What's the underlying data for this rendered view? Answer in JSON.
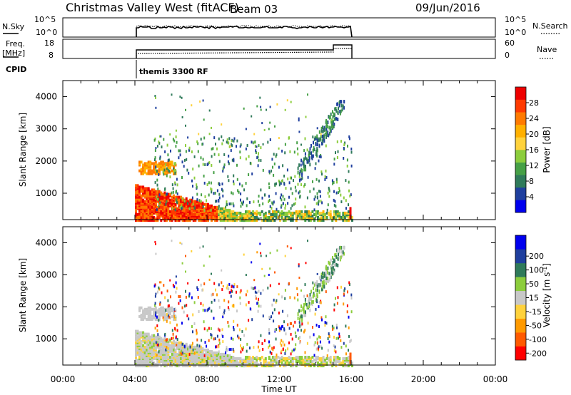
{
  "header": {
    "title": "Christmas Valley West (fitACF)",
    "beam": "Beam 03",
    "date": "09/Jun/2016"
  },
  "summary": {
    "nsky_label": "N.Sky",
    "nsky_ticks": [
      "10^5",
      "10^0"
    ],
    "nsearch_label": "N.Search",
    "freq_label_1": "Freq.",
    "freq_label_2": "[MHz]",
    "freq_ticks": [
      "18",
      "8"
    ],
    "nave_label": "Nave",
    "nave_ticks": [
      "60",
      "0"
    ],
    "cpid_label": "CPID",
    "cpid_value": "themis 3300 RF"
  },
  "colors": {
    "power_scale": [
      "#0000ee",
      "#1f3f9e",
      "#2f7a5a",
      "#46a046",
      "#8ccd3c",
      "#ffd23c",
      "#ffb000",
      "#ff7a00",
      "#ff3a00",
      "#ee0000"
    ],
    "velocity_scale": [
      "#ff0000",
      "#ff5a00",
      "#ff9a00",
      "#ffd23c",
      "#c8c8c8",
      "#8ccd3c",
      "#2f7a5a",
      "#1f3f9e",
      "#0000ee"
    ]
  },
  "chart_data": [
    {
      "type": "heatmap",
      "panel": "power",
      "xlabel": "",
      "ylabel": "Slant Range [km]",
      "x_range": [
        "00:00",
        "24:00"
      ],
      "ylim": [
        180,
        4500
      ],
      "yticks": [
        "1000",
        "2000",
        "3000",
        "4000"
      ],
      "colorbar_label": "Power [dB]",
      "colorbar_ticks": [
        "4",
        "8",
        "12",
        "16",
        "20",
        "24",
        "28"
      ],
      "data_coverage": [
        "04:00",
        "16:00"
      ]
    },
    {
      "type": "heatmap",
      "panel": "velocity",
      "xlabel": "Time UT",
      "ylabel": "Slant Range [km]",
      "x_range": [
        "00:00",
        "24:00"
      ],
      "ylim": [
        180,
        4500
      ],
      "yticks": [
        "1000",
        "2000",
        "3000",
        "4000"
      ],
      "xticks": [
        "00:00",
        "04:00",
        "08:00",
        "12:00",
        "16:00",
        "20:00",
        "00:00"
      ],
      "colorbar_label": "Velocity [m s^-1]",
      "colorbar_ticks": [
        "-200",
        "-100",
        "-50",
        "-15",
        "15",
        "50",
        "100",
        "200"
      ],
      "data_coverage": [
        "04:00",
        "16:00"
      ]
    }
  ]
}
